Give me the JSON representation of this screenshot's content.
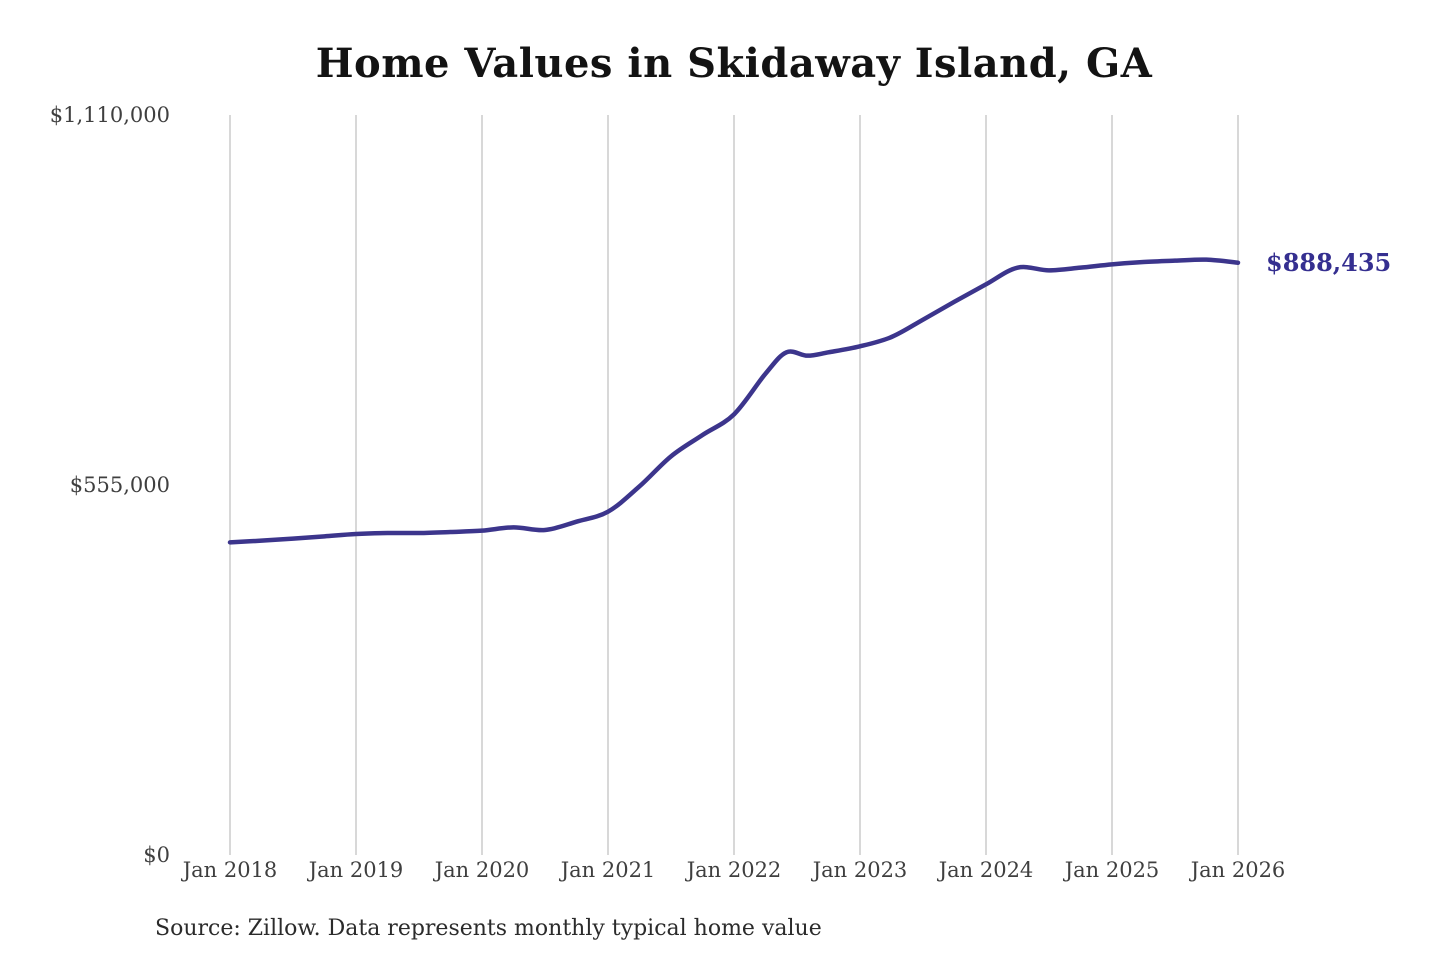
{
  "page": {
    "background_color": "#ffffff"
  },
  "chart_data": {
    "type": "line",
    "title": "Home Values in Skidaway Island, GA",
    "source_note": "Source: Zillow. Data represents monthly typical home value",
    "series_name": "Monthly typical home value",
    "line_color": "#3c358c",
    "grid_color": "#cccccc",
    "tick_label_color": "#3f3f3f",
    "latest_value_label": "$888,435",
    "latest_value_color": "#352f90",
    "grid": "vertical-only",
    "legend_position": "none",
    "ylim": [
      0,
      1110000
    ],
    "xlim": [
      "2018-01",
      "2026-01"
    ],
    "yticks": [
      {
        "value": 0,
        "label": "$0"
      },
      {
        "value": 555000,
        "label": "$555,000"
      },
      {
        "value": 1110000,
        "label": "$1,110,000"
      }
    ],
    "xticks": [
      {
        "x": "2018-01",
        "label": "Jan 2018"
      },
      {
        "x": "2019-01",
        "label": "Jan 2019"
      },
      {
        "x": "2020-01",
        "label": "Jan 2020"
      },
      {
        "x": "2021-01",
        "label": "Jan 2021"
      },
      {
        "x": "2022-01",
        "label": "Jan 2022"
      },
      {
        "x": "2023-01",
        "label": "Jan 2023"
      },
      {
        "x": "2024-01",
        "label": "Jan 2024"
      },
      {
        "x": "2025-01",
        "label": "Jan 2025"
      },
      {
        "x": "2026-01",
        "label": "Jan 2026"
      }
    ],
    "points": [
      {
        "date": "2018-01",
        "value": 469000
      },
      {
        "date": "2018-04",
        "value": 471500
      },
      {
        "date": "2018-07",
        "value": 474500
      },
      {
        "date": "2018-10",
        "value": 478000
      },
      {
        "date": "2019-01",
        "value": 481500
      },
      {
        "date": "2019-04",
        "value": 483000
      },
      {
        "date": "2019-07",
        "value": 483000
      },
      {
        "date": "2019-10",
        "value": 484500
      },
      {
        "date": "2020-01",
        "value": 486500
      },
      {
        "date": "2020-04",
        "value": 491500
      },
      {
        "date": "2020-07",
        "value": 487500
      },
      {
        "date": "2020-10",
        "value": 500000
      },
      {
        "date": "2021-01",
        "value": 515000
      },
      {
        "date": "2021-04",
        "value": 553000
      },
      {
        "date": "2021-07",
        "value": 598000
      },
      {
        "date": "2021-10",
        "value": 630000
      },
      {
        "date": "2022-01",
        "value": 661000
      },
      {
        "date": "2022-04",
        "value": 722000
      },
      {
        "date": "2022-06",
        "value": 754000
      },
      {
        "date": "2022-08",
        "value": 749000
      },
      {
        "date": "2022-10",
        "value": 754000
      },
      {
        "date": "2023-01",
        "value": 763000
      },
      {
        "date": "2023-04",
        "value": 777000
      },
      {
        "date": "2023-07",
        "value": 803000
      },
      {
        "date": "2023-10",
        "value": 830000
      },
      {
        "date": "2024-01",
        "value": 856000
      },
      {
        "date": "2024-04",
        "value": 881000
      },
      {
        "date": "2024-07",
        "value": 877000
      },
      {
        "date": "2024-10",
        "value": 881000
      },
      {
        "date": "2025-01",
        "value": 886000
      },
      {
        "date": "2025-04",
        "value": 889500
      },
      {
        "date": "2025-07",
        "value": 891500
      },
      {
        "date": "2025-10",
        "value": 893000
      },
      {
        "date": "2026-01",
        "value": 888435
      }
    ]
  }
}
